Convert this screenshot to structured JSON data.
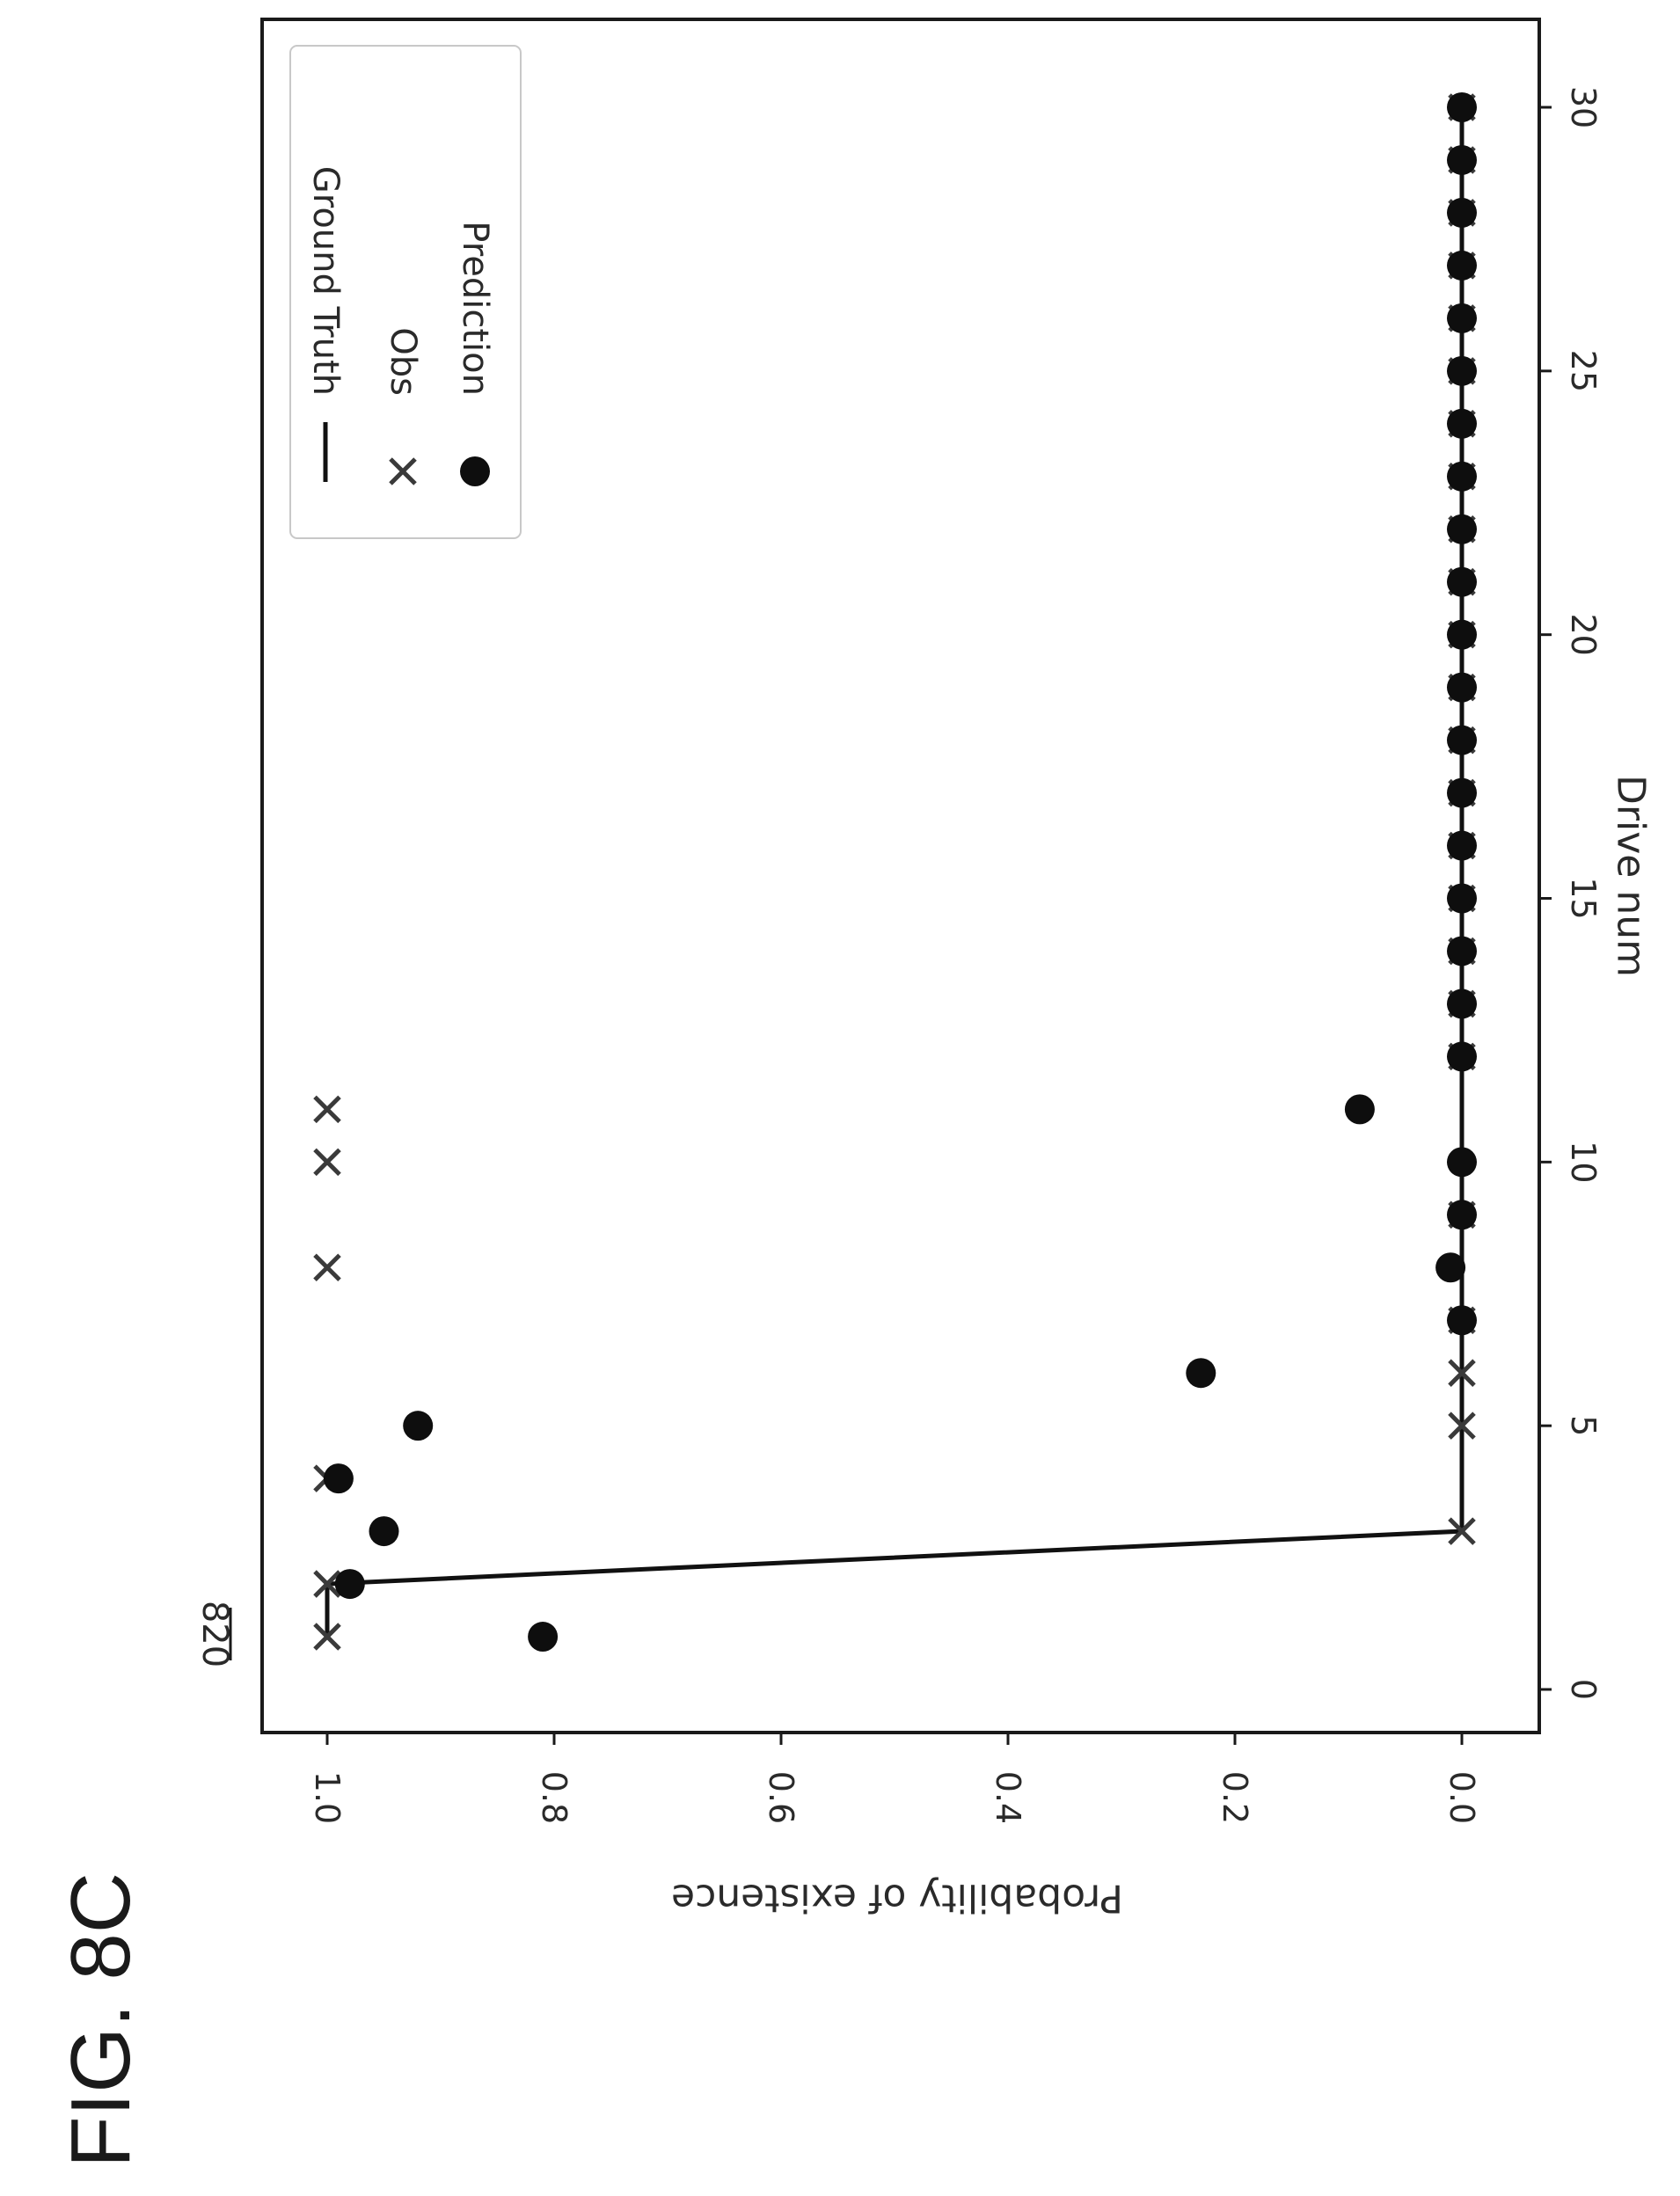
{
  "figure_label": "FIG. 8C",
  "reference_number": "820",
  "chart_data": {
    "type": "scatter",
    "xlabel": "Drive num",
    "ylabel": "Probability of existence",
    "xlim": [
      -1.2,
      31.5
    ],
    "ylim": [
      -0.06,
      1.06
    ],
    "xticks": [
      "0",
      "5",
      "10",
      "15",
      "20",
      "25",
      "30"
    ],
    "yticks": [
      "0.0",
      "0.2",
      "0.4",
      "0.6",
      "0.8",
      "1.0"
    ],
    "legend_position": "top-right",
    "grid": false,
    "orientation": "rotated 90° clockwise on page",
    "series": [
      {
        "name": "Ground Truth",
        "kind": "line",
        "x": [
          1,
          2,
          3,
          4,
          5,
          6,
          7,
          8,
          9,
          10,
          11,
          12,
          13,
          14,
          15,
          16,
          17,
          18,
          19,
          20,
          21,
          22,
          23,
          24,
          25,
          26,
          27,
          28,
          29,
          30
        ],
        "y": [
          1,
          1,
          0,
          0,
          0,
          0,
          0,
          0,
          0,
          0,
          0,
          0,
          0,
          0,
          0,
          0,
          0,
          0,
          0,
          0,
          0,
          0,
          0,
          0,
          0,
          0,
          0,
          0,
          0,
          0
        ]
      },
      {
        "name": "Obs",
        "kind": "x-marker",
        "x": [
          1,
          2,
          3,
          4,
          5,
          6,
          7,
          8,
          9,
          10,
          11,
          12,
          13,
          14,
          15,
          16,
          17,
          18,
          19,
          20,
          21,
          22,
          23,
          24,
          25,
          26,
          27,
          28,
          29,
          30
        ],
        "y": [
          1,
          1,
          0,
          1,
          0,
          0,
          0,
          1,
          0,
          1,
          1,
          0,
          0,
          0,
          0,
          0,
          0,
          0,
          0,
          0,
          0,
          0,
          0,
          0,
          0,
          0,
          0,
          0,
          0,
          0
        ]
      },
      {
        "name": "Prediction",
        "kind": "circle",
        "x": [
          1,
          2,
          3,
          4,
          5,
          6,
          7,
          8,
          9,
          10,
          11,
          12,
          13,
          14,
          15,
          16,
          17,
          18,
          19,
          20,
          21,
          22,
          23,
          24,
          25,
          26,
          27,
          28,
          29,
          30
        ],
        "y": [
          0.81,
          0.98,
          0.95,
          0.99,
          0.92,
          0.23,
          0.0,
          0.01,
          0.0,
          0.0,
          0.09,
          0.0,
          0.0,
          0.0,
          0.0,
          0.0,
          0.0,
          0.0,
          0.0,
          0.0,
          0.0,
          0.0,
          0.0,
          0.0,
          0.0,
          0.0,
          0.0,
          0.0,
          0.0,
          0.0
        ]
      }
    ]
  }
}
